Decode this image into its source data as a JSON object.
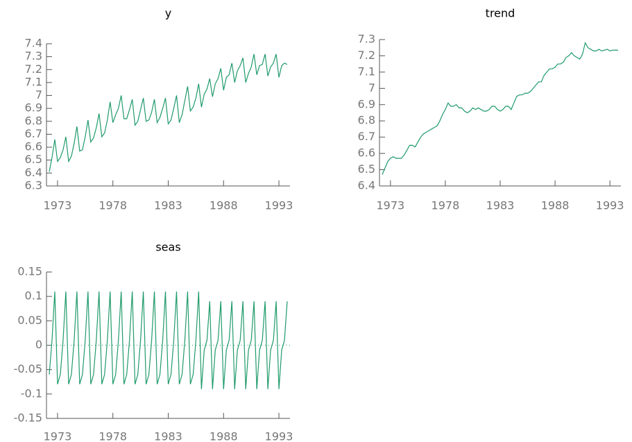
{
  "chart_data": [
    {
      "type": "line",
      "title": "y",
      "color": "#1f9a6b",
      "x": [
        1972.25,
        1972.5,
        1972.75,
        1973,
        1973.25,
        1973.5,
        1973.75,
        1974,
        1974.25,
        1974.5,
        1974.75,
        1975,
        1975.25,
        1975.5,
        1975.75,
        1976,
        1976.25,
        1976.5,
        1976.75,
        1977,
        1977.25,
        1977.5,
        1977.75,
        1978,
        1978.25,
        1978.5,
        1978.75,
        1979,
        1979.25,
        1979.5,
        1979.75,
        1980,
        1980.25,
        1980.5,
        1980.75,
        1981,
        1981.25,
        1981.5,
        1981.75,
        1982,
        1982.25,
        1982.5,
        1982.75,
        1983,
        1983.25,
        1983.5,
        1983.75,
        1984,
        1984.25,
        1984.5,
        1984.75,
        1985,
        1985.25,
        1985.5,
        1985.75,
        1986,
        1986.25,
        1986.5,
        1986.75,
        1987,
        1987.25,
        1987.5,
        1987.75,
        1988,
        1988.25,
        1988.5,
        1988.75,
        1989,
        1989.25,
        1989.5,
        1989.75,
        1990,
        1990.25,
        1990.5,
        1990.75,
        1991,
        1991.25,
        1991.5,
        1991.75,
        1992,
        1992.25,
        1992.5,
        1992.75,
        1993,
        1993.25,
        1993.5,
        1993.75
      ],
      "values": [
        6.41,
        6.52,
        6.66,
        6.49,
        6.52,
        6.58,
        6.68,
        6.49,
        6.53,
        6.63,
        6.76,
        6.57,
        6.58,
        6.68,
        6.81,
        6.64,
        6.67,
        6.75,
        6.86,
        6.68,
        6.71,
        6.81,
        6.95,
        6.79,
        6.85,
        6.9,
        7.0,
        6.82,
        6.82,
        6.89,
        6.97,
        6.77,
        6.8,
        6.89,
        6.98,
        6.8,
        6.81,
        6.87,
        6.97,
        6.79,
        6.83,
        6.9,
        6.98,
        6.78,
        6.81,
        6.9,
        7.0,
        6.79,
        6.85,
        6.96,
        7.07,
        6.88,
        6.91,
        6.98,
        7.09,
        6.91,
        7.01,
        7.05,
        7.13,
        6.99,
        7.09,
        7.13,
        7.21,
        7.04,
        7.14,
        7.16,
        7.25,
        7.1,
        7.19,
        7.23,
        7.29,
        7.1,
        7.17,
        7.22,
        7.32,
        7.16,
        7.23,
        7.24,
        7.32,
        7.15,
        7.22,
        7.25,
        7.32,
        7.14,
        7.23,
        7.25,
        7.24
      ],
      "xlim": [
        1972,
        1994
      ],
      "ylim": [
        6.3,
        7.4
      ],
      "xticks": [
        1973,
        1978,
        1983,
        1988,
        1993
      ],
      "yticks": [
        6.3,
        6.4,
        6.5,
        6.6,
        6.7,
        6.8,
        6.9,
        7,
        7.1,
        7.2,
        7.3,
        7.4
      ]
    },
    {
      "type": "line",
      "title": "trend",
      "color": "#1f9a6b",
      "x": [
        1972.25,
        1972.5,
        1972.75,
        1973,
        1973.25,
        1973.5,
        1973.75,
        1974,
        1974.25,
        1974.5,
        1974.75,
        1975,
        1975.25,
        1975.5,
        1975.75,
        1976,
        1976.25,
        1976.5,
        1976.75,
        1977,
        1977.25,
        1977.5,
        1977.75,
        1978,
        1978.25,
        1978.5,
        1978.75,
        1979,
        1979.25,
        1979.5,
        1979.75,
        1980,
        1980.25,
        1980.5,
        1980.75,
        1981,
        1981.25,
        1981.5,
        1981.75,
        1982,
        1982.25,
        1982.5,
        1982.75,
        1983,
        1983.25,
        1983.5,
        1983.75,
        1984,
        1984.25,
        1984.5,
        1984.75,
        1985,
        1985.25,
        1985.5,
        1985.75,
        1986,
        1986.25,
        1986.5,
        1986.75,
        1987,
        1987.25,
        1987.5,
        1987.75,
        1988,
        1988.25,
        1988.5,
        1988.75,
        1989,
        1989.25,
        1989.5,
        1989.75,
        1990,
        1990.25,
        1990.5,
        1990.75,
        1991,
        1991.25,
        1991.5,
        1991.75,
        1992,
        1992.25,
        1992.5,
        1992.75,
        1993,
        1993.25,
        1993.5,
        1993.75
      ],
      "values": [
        6.47,
        6.51,
        6.55,
        6.57,
        6.58,
        6.57,
        6.57,
        6.57,
        6.59,
        6.62,
        6.65,
        6.65,
        6.64,
        6.67,
        6.7,
        6.72,
        6.73,
        6.74,
        6.75,
        6.76,
        6.77,
        6.8,
        6.84,
        6.87,
        6.91,
        6.89,
        6.89,
        6.9,
        6.88,
        6.88,
        6.86,
        6.85,
        6.86,
        6.88,
        6.87,
        6.88,
        6.87,
        6.86,
        6.86,
        6.87,
        6.89,
        6.89,
        6.87,
        6.86,
        6.87,
        6.89,
        6.89,
        6.87,
        6.91,
        6.95,
        6.96,
        6.96,
        6.97,
        6.97,
        6.98,
        7.0,
        7.02,
        7.04,
        7.04,
        7.08,
        7.1,
        7.12,
        7.12,
        7.13,
        7.15,
        7.15,
        7.16,
        7.19,
        7.2,
        7.22,
        7.2,
        7.19,
        7.18,
        7.21,
        7.28,
        7.25,
        7.24,
        7.23,
        7.23,
        7.24,
        7.23,
        7.235,
        7.24,
        7.23,
        7.235,
        7.235,
        7.235
      ],
      "xlim": [
        1972,
        1994
      ],
      "ylim": [
        6.4,
        7.3
      ],
      "xticks": [
        1973,
        1978,
        1983,
        1988,
        1993
      ],
      "yticks": [
        6.4,
        6.5,
        6.6,
        6.7,
        6.8,
        6.9,
        7,
        7.1,
        7.2,
        7.3
      ]
    },
    {
      "type": "line",
      "title": "seas",
      "color": "#1f9a6b",
      "zero_line": true,
      "x": [
        1972.25,
        1972.5,
        1972.75,
        1973,
        1973.25,
        1973.5,
        1973.75,
        1974,
        1974.25,
        1974.5,
        1974.75,
        1975,
        1975.25,
        1975.5,
        1975.75,
        1976,
        1976.25,
        1976.5,
        1976.75,
        1977,
        1977.25,
        1977.5,
        1977.75,
        1978,
        1978.25,
        1978.5,
        1978.75,
        1979,
        1979.25,
        1979.5,
        1979.75,
        1980,
        1980.25,
        1980.5,
        1980.75,
        1981,
        1981.25,
        1981.5,
        1981.75,
        1982,
        1982.25,
        1982.5,
        1982.75,
        1983,
        1983.25,
        1983.5,
        1983.75,
        1984,
        1984.25,
        1984.5,
        1984.75,
        1985,
        1985.25,
        1985.5,
        1985.75,
        1986,
        1986.25,
        1986.5,
        1986.75,
        1987,
        1987.25,
        1987.5,
        1987.75,
        1988,
        1988.25,
        1988.5,
        1988.75,
        1989,
        1989.25,
        1989.5,
        1989.75,
        1990,
        1990.25,
        1990.5,
        1990.75,
        1991,
        1991.25,
        1991.5,
        1991.75,
        1992,
        1992.25,
        1992.5,
        1992.75,
        1993,
        1993.25,
        1993.5,
        1993.75
      ],
      "values": [
        -0.06,
        0.01,
        0.11,
        -0.08,
        -0.06,
        0.01,
        0.11,
        -0.08,
        -0.06,
        0.01,
        0.11,
        -0.08,
        -0.06,
        0.01,
        0.11,
        -0.08,
        -0.06,
        0.01,
        0.11,
        -0.08,
        -0.06,
        0.01,
        0.11,
        -0.08,
        -0.06,
        0.01,
        0.11,
        -0.08,
        -0.06,
        0.01,
        0.11,
        -0.08,
        -0.06,
        0.01,
        0.11,
        -0.08,
        -0.06,
        0.01,
        0.11,
        -0.08,
        -0.06,
        0.01,
        0.11,
        -0.08,
        -0.06,
        0.01,
        0.11,
        -0.08,
        -0.06,
        0.01,
        0.11,
        -0.08,
        -0.06,
        0.01,
        0.11,
        -0.09,
        -0.01,
        0.01,
        0.09,
        -0.09,
        -0.01,
        0.01,
        0.09,
        -0.09,
        -0.01,
        0.01,
        0.09,
        -0.09,
        -0.01,
        0.01,
        0.09,
        -0.09,
        -0.01,
        0.01,
        0.09,
        -0.09,
        -0.01,
        0.01,
        0.09,
        -0.09,
        -0.01,
        0.01,
        0.09,
        -0.09,
        -0.01,
        0.01,
        0.09
      ],
      "xlim": [
        1972,
        1994
      ],
      "ylim": [
        -0.15,
        0.15
      ],
      "xticks": [
        1973,
        1978,
        1983,
        1988,
        1993
      ],
      "yticks": [
        -0.15,
        -0.1,
        -0.05,
        0,
        0.05,
        0.1,
        0.15
      ]
    }
  ]
}
